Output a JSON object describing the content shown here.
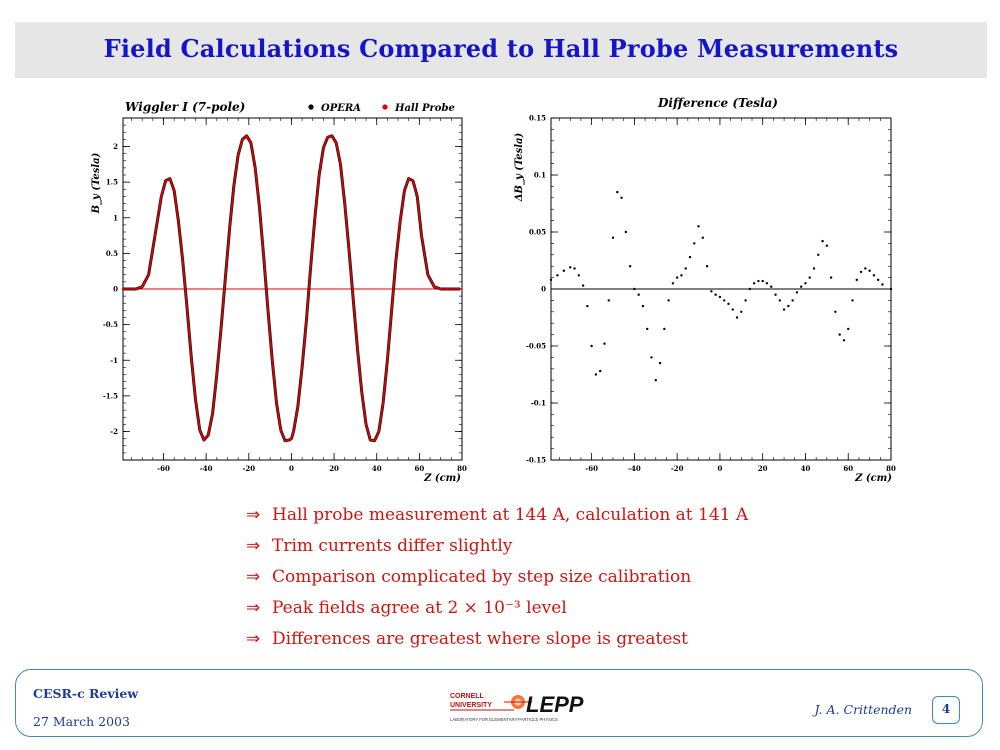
{
  "title": "Field Calculations Compared to Hall Probe Measurements",
  "chart_data": [
    {
      "type": "scatter",
      "title": "Wiggler I (7-pole)",
      "xlabel": "Z (cm)",
      "ylabel": "B_y (Tesla)",
      "xlim": [
        -79,
        80
      ],
      "ylim": [
        -2.4,
        2.4
      ],
      "x_ticks": [
        "-60",
        "-40",
        "-20",
        "0",
        "20",
        "40",
        "60",
        "80"
      ],
      "y_ticks": [
        "2",
        "1.5",
        "1",
        "0.5",
        "0",
        "-0.5",
        "-1",
        "-1.5",
        "-2"
      ],
      "legend_position": "top-right",
      "series": [
        {
          "name": "OPERA",
          "color": "#000000",
          "x": [
            -79,
            -73,
            -70,
            -67,
            -64,
            -61,
            -59,
            -57,
            -55,
            -53,
            -51,
            -49,
            -47,
            -45,
            -43,
            -41,
            -39,
            -37,
            -35,
            -33,
            -31,
            -29,
            -27,
            -25,
            -23,
            -21,
            -19,
            -17,
            -15,
            -13,
            -11,
            -9,
            -7,
            -5,
            -3,
            -1,
            0,
            1,
            3,
            5,
            7,
            9,
            11,
            13,
            15,
            17,
            19,
            21,
            23,
            25,
            27,
            29,
            31,
            33,
            35,
            37,
            39,
            41,
            43,
            45,
            47,
            49,
            51,
            53,
            55,
            57,
            59,
            61,
            64,
            67,
            70,
            73,
            79
          ],
          "y": [
            0,
            0,
            0.03,
            0.2,
            0.75,
            1.3,
            1.52,
            1.55,
            1.38,
            0.95,
            0.4,
            -0.25,
            -0.95,
            -1.55,
            -1.98,
            -2.12,
            -2.05,
            -1.75,
            -1.2,
            -0.55,
            0.15,
            0.85,
            1.45,
            1.88,
            2.1,
            2.15,
            2.05,
            1.7,
            1.15,
            0.45,
            -0.3,
            -1.0,
            -1.6,
            -1.98,
            -2.13,
            -2.12,
            -2.1,
            -2.0,
            -1.65,
            -1.1,
            -0.45,
            0.3,
            1.0,
            1.6,
            1.98,
            2.13,
            2.15,
            2.05,
            1.75,
            1.2,
            0.55,
            -0.15,
            -0.85,
            -1.45,
            -1.9,
            -2.12,
            -2.13,
            -2.0,
            -1.6,
            -1.0,
            -0.3,
            0.4,
            0.95,
            1.38,
            1.55,
            1.52,
            1.3,
            0.75,
            0.2,
            0.03,
            0,
            0,
            0
          ]
        },
        {
          "name": "Hall Probe",
          "color": "#e00000",
          "x": [
            -79,
            -73,
            -70,
            -67,
            -64,
            -61,
            -59,
            -57,
            -55,
            -53,
            -51,
            -49,
            -47,
            -45,
            -43,
            -41,
            -39,
            -37,
            -35,
            -33,
            -31,
            -29,
            -27,
            -25,
            -23,
            -21,
            -19,
            -17,
            -15,
            -13,
            -11,
            -9,
            -7,
            -5,
            -3,
            -1,
            0,
            1,
            3,
            5,
            7,
            9,
            11,
            13,
            15,
            17,
            19,
            21,
            23,
            25,
            27,
            29,
            31,
            33,
            35,
            37,
            39,
            41,
            43,
            45,
            47,
            49,
            51,
            53,
            55,
            57,
            59,
            61,
            64,
            67,
            70,
            73,
            79
          ],
          "y": [
            0,
            0,
            0.03,
            0.2,
            0.75,
            1.3,
            1.52,
            1.55,
            1.38,
            0.95,
            0.4,
            -0.25,
            -0.95,
            -1.55,
            -1.98,
            -2.12,
            -2.05,
            -1.75,
            -1.2,
            -0.55,
            0.15,
            0.85,
            1.45,
            1.88,
            2.1,
            2.15,
            2.05,
            1.7,
            1.15,
            0.45,
            -0.3,
            -1.0,
            -1.6,
            -1.98,
            -2.13,
            -2.12,
            -2.1,
            -2.0,
            -1.65,
            -1.1,
            -0.45,
            0.3,
            1.0,
            1.6,
            1.98,
            2.13,
            2.15,
            2.05,
            1.75,
            1.2,
            0.55,
            -0.15,
            -0.85,
            -1.45,
            -1.9,
            -2.12,
            -2.13,
            -2.0,
            -1.6,
            -1.0,
            -0.3,
            0.4,
            0.95,
            1.38,
            1.55,
            1.52,
            1.3,
            0.75,
            0.2,
            0.03,
            0,
            0,
            0
          ]
        }
      ]
    },
    {
      "type": "scatter",
      "title": "Difference (Tesla)",
      "xlabel": "Z (cm)",
      "ylabel": "ΔB_y (Tesla)",
      "xlim": [
        -79,
        80
      ],
      "ylim": [
        -0.15,
        0.15
      ],
      "x_ticks": [
        "-60",
        "-40",
        "-20",
        "0",
        "20",
        "40",
        "60",
        "80"
      ],
      "y_ticks": [
        "0.15",
        "0.1",
        "0.05",
        "0",
        "-0.05",
        "-0.1",
        "-0.15"
      ],
      "series": [
        {
          "name": "",
          "color": "#000000",
          "x": [
            -79,
            -76,
            -73,
            -70,
            -68,
            -66,
            -64,
            -62,
            -60,
            -58,
            -56,
            -54,
            -52,
            -50,
            -48,
            -46,
            -44,
            -42,
            -40,
            -38,
            -36,
            -34,
            -32,
            -30,
            -28,
            -26,
            -24,
            -22,
            -20,
            -18,
            -16,
            -14,
            -12,
            -10,
            -8,
            -6,
            -4,
            -2,
            0,
            2,
            4,
            6,
            8,
            10,
            12,
            14,
            16,
            18,
            20,
            22,
            24,
            26,
            28,
            30,
            32,
            34,
            36,
            38,
            40,
            42,
            44,
            46,
            48,
            50,
            52,
            54,
            56,
            58,
            60,
            62,
            64,
            66,
            68,
            70,
            72,
            74,
            76,
            80
          ],
          "y": [
            0.008,
            0.012,
            0.016,
            0.019,
            0.018,
            0.012,
            0.003,
            -0.015,
            -0.05,
            -0.075,
            -0.072,
            -0.048,
            -0.01,
            0.045,
            0.085,
            0.08,
            0.05,
            0.02,
            0,
            -0.005,
            -0.015,
            -0.035,
            -0.06,
            -0.08,
            -0.065,
            -0.035,
            -0.01,
            0.005,
            0.01,
            0.012,
            0.018,
            0.028,
            0.04,
            0.055,
            0.045,
            0.02,
            -0.002,
            -0.005,
            -0.007,
            -0.01,
            -0.013,
            -0.018,
            -0.025,
            -0.02,
            -0.01,
            0.0,
            0.005,
            0.007,
            0.007,
            0.005,
            0.002,
            -0.005,
            -0.01,
            -0.018,
            -0.015,
            -0.01,
            -0.003,
            0.002,
            0.005,
            0.01,
            0.018,
            0.03,
            0.042,
            0.038,
            0.01,
            -0.02,
            -0.04,
            -0.045,
            -0.035,
            -0.01,
            0.008,
            0.015,
            0.018,
            0.016,
            0.012,
            0.008,
            0.004,
            0.0
          ]
        }
      ]
    }
  ],
  "bullets": [
    "Hall probe measurement at 144 A, calculation at 141 A",
    "Trim currents differ slightly",
    "Comparison complicated by step size calibration",
    "Peak fields agree at 2 × 10⁻³ level",
    "Differences are greatest where slope is greatest"
  ],
  "bullet_symbol": "⇒",
  "footer": {
    "conference": "CESR-c Review",
    "date": "27 March 2003",
    "author": "J. A. Crittenden",
    "page": "4",
    "logo": {
      "line1": "CORNELL",
      "line2": "UNIVERSITY",
      "name": "LEPP",
      "subtitle": "LABORATORY FOR ELEMENTARY-PARTICLE PHYSICS"
    }
  },
  "colors": {
    "title": "#1515c8",
    "bullets": "#d0140e",
    "footer_text": "#1a3d9a",
    "frame": "#3a8fb5",
    "title_bg": "#e6e6e6"
  }
}
